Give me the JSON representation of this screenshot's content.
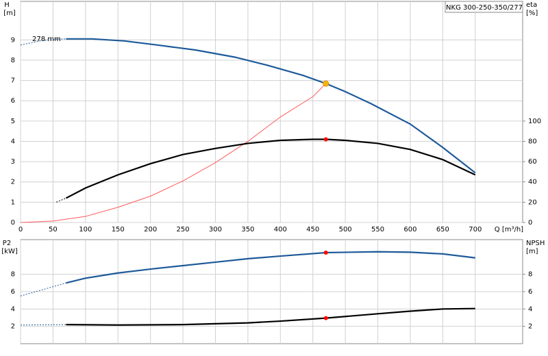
{
  "chart_data": [
    {
      "type": "line",
      "title": "NKG 300-250-350/277",
      "annotation": "278 mm",
      "ylabel": "H",
      "yunit": "[m]",
      "y2label": "eta",
      "y2unit": "[%]",
      "xlabel": "Q [m³/h]",
      "xlim": [
        0,
        773
      ],
      "xticks": [
        0,
        50,
        100,
        150,
        200,
        250,
        300,
        350,
        400,
        450,
        500,
        550,
        600,
        650,
        700
      ],
      "ylim": [
        0,
        10.9
      ],
      "yticks": [
        0,
        1,
        2,
        3,
        4,
        5,
        6,
        7,
        8,
        9
      ],
      "y2lim": [
        0,
        218
      ],
      "y2ticks": [
        0,
        20,
        40,
        60,
        80,
        100
      ],
      "grid": true,
      "series": [
        {
          "color": "#1d5a99",
          "dashed": true,
          "x": [
            0,
            30,
            50,
            70
          ],
          "values": [
            8.75,
            8.95,
            9.03,
            9.05
          ]
        },
        {
          "color": "#1d5a99",
          "x": [
            70,
            110,
            160,
            210,
            270,
            330,
            380,
            435,
            470,
            500,
            540,
            600,
            650,
            700
          ],
          "values": [
            9.05,
            9.05,
            8.95,
            8.75,
            8.5,
            8.15,
            7.75,
            7.25,
            6.85,
            6.45,
            5.85,
            4.85,
            3.7,
            2.45
          ]
        },
        {
          "color": "#ff5a5a",
          "thin": true,
          "x": [
            0,
            50,
            100,
            150,
            200,
            250,
            300,
            350,
            400,
            450,
            470
          ],
          "values": [
            0,
            0.07,
            0.3,
            0.75,
            1.3,
            2.05,
            2.95,
            4.0,
            5.2,
            6.2,
            6.85
          ]
        },
        {
          "color": "#000000",
          "dashed": true,
          "axis": "y2",
          "x": [
            55,
            70
          ],
          "values": [
            20,
            24
          ]
        },
        {
          "color": "#000000",
          "axis": "y2",
          "x": [
            70,
            100,
            150,
            200,
            250,
            300,
            350,
            400,
            450,
            470,
            500,
            550,
            600,
            650,
            700
          ],
          "values": [
            24,
            34,
            47,
            58,
            67,
            73,
            78,
            81,
            82,
            82,
            81,
            78,
            72,
            62,
            47
          ]
        }
      ],
      "points": [
        {
          "x": 470,
          "y": 6.85,
          "color": "#f5b800"
        },
        {
          "x": 470,
          "y": 82,
          "color": "#ff0000",
          "axis": "y2"
        }
      ]
    },
    {
      "type": "line",
      "ylabel": "P2",
      "yunit": "[kW]",
      "y2label": "NPSH",
      "y2unit": "[m]",
      "xlim": [
        0,
        773
      ],
      "xticks": [
        0,
        50,
        100,
        150,
        200,
        250,
        300,
        350,
        400,
        450,
        500,
        550,
        600,
        650,
        700
      ],
      "ylim": [
        0,
        12
      ],
      "yticks": [
        2,
        4,
        6,
        8
      ],
      "y2lim": [
        0,
        12
      ],
      "y2ticks": [
        2,
        4,
        6,
        8
      ],
      "grid": true,
      "series": [
        {
          "color": "#1d5a99",
          "dashed": true,
          "x": [
            0,
            70
          ],
          "values": [
            5.5,
            7.0
          ]
        },
        {
          "color": "#1d5a99",
          "x": [
            70,
            100,
            150,
            200,
            250,
            300,
            350,
            400,
            470,
            550,
            600,
            650,
            700
          ],
          "values": [
            7.0,
            7.55,
            8.15,
            8.6,
            9.0,
            9.4,
            9.8,
            10.1,
            10.5,
            10.6,
            10.55,
            10.35,
            9.9
          ]
        },
        {
          "color": "#1d5a99",
          "dashed": true,
          "axis": "y2",
          "x": [
            0,
            70
          ],
          "values": [
            2.15,
            2.2
          ]
        },
        {
          "color": "#000000",
          "axis": "y2",
          "x": [
            70,
            150,
            250,
            350,
            400,
            470,
            550,
            600,
            650,
            700
          ],
          "values": [
            2.2,
            2.15,
            2.2,
            2.4,
            2.6,
            2.95,
            3.45,
            3.75,
            4.0,
            4.05
          ]
        }
      ],
      "points": [
        {
          "x": 470,
          "y": 10.5,
          "color": "#ff0000"
        },
        {
          "x": 470,
          "y": 2.95,
          "color": "#ff0000",
          "axis": "y2"
        }
      ]
    }
  ]
}
